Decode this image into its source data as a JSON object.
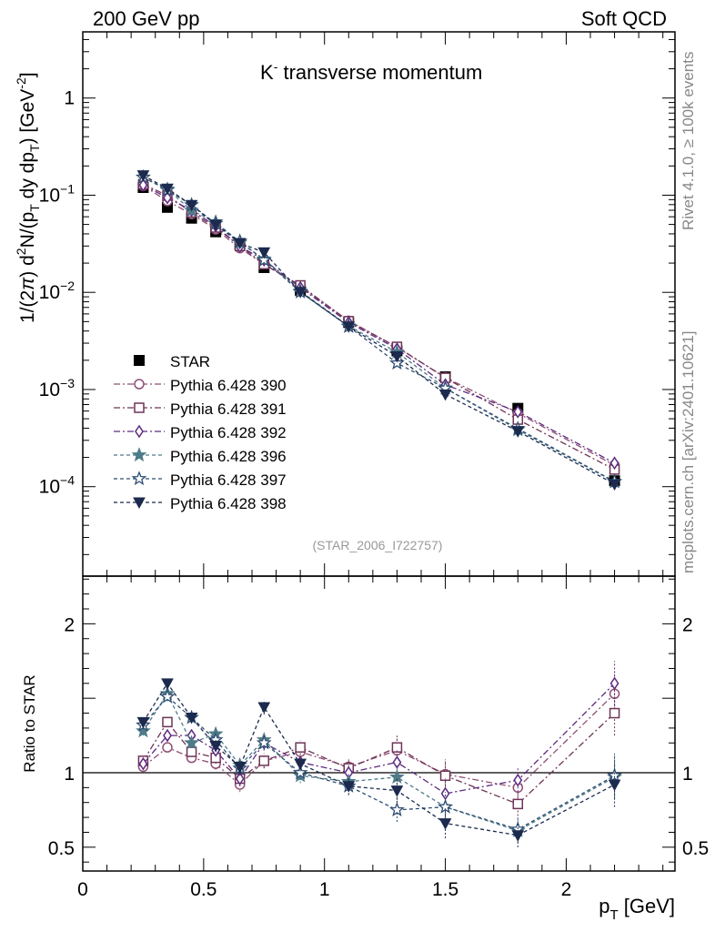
{
  "header": {
    "left": "200 GeV pp",
    "right": "Soft QCD"
  },
  "side_labels": {
    "rivet": "Rivet 4.1.0, ≥ 100k events",
    "mcplots": "mcplots.cern.ch [arXiv:2401.10621]"
  },
  "chart_data": [
    {
      "id": "main",
      "type": "line",
      "scale": "log",
      "title_prefix": "K",
      "title_sup": "-",
      "title_rest": " transverse momentum",
      "ylabel": "1/(2π) d²N/(p_T dy dp_T) [GeV⁻²]",
      "ylabel_parts": {
        "p1": "1/(2",
        "pi": "π",
        "p2": ")   d",
        "sup2": "2",
        "p3": "N/(p",
        "subT": "T",
        "p4": " dy dp",
        "subT2": "T",
        "p5": ") [GeV",
        "supm2": "-2",
        "p6": "]"
      },
      "xlim": [
        0,
        2.45
      ],
      "ylim": [
        1.2e-05,
        4.8
      ],
      "yticks": [
        {
          "v": 1,
          "label": "1"
        },
        {
          "v": 0.1,
          "base": "10",
          "exp": "−1"
        },
        {
          "v": 0.01,
          "base": "10",
          "exp": "−2"
        },
        {
          "v": 0.001,
          "base": "10",
          "exp": "−3"
        },
        {
          "v": 0.0001,
          "base": "10",
          "exp": "−4"
        }
      ],
      "analysis_label": "(STAR_2006_I722757)",
      "x": [
        0.25,
        0.35,
        0.45,
        0.55,
        0.65,
        0.75,
        0.9,
        1.1,
        1.3,
        1.5,
        1.8,
        2.2
      ],
      "data": {
        "name": "STAR",
        "values": [
          0.12,
          0.075,
          0.058,
          0.042,
          0.031,
          0.018,
          0.0105,
          0.0049,
          0.0025,
          0.00135,
          0.00064,
          0.000115
        ]
      },
      "series": [
        {
          "name": "Pythia 6.428 390",
          "color": "#8e4f74",
          "marker": "circle-open",
          "dash": "7 3 2 3",
          "values": [
            0.125,
            0.087,
            0.064,
            0.0445,
            0.0285,
            0.0195,
            0.0115,
            0.0051,
            0.00272,
            0.00133,
            0.00057,
            0.000166
          ]
        },
        {
          "name": "Pythia 6.428 391",
          "color": "#6e3456",
          "marker": "square-open",
          "dash": "7 3 2 3",
          "values": [
            0.13,
            0.099,
            0.0665,
            0.0465,
            0.03,
            0.0195,
            0.0118,
            0.00505,
            0.00275,
            0.00132,
            0.00049,
            0.00015
          ]
        },
        {
          "name": "Pythia 6.428 392",
          "color": "#5e2a80",
          "marker": "diamond-open",
          "dash": "7 3 2 3",
          "values": [
            0.127,
            0.094,
            0.0698,
            0.0482,
            0.0297,
            0.0215,
            0.0112,
            0.0049,
            0.00262,
            0.00112,
            0.00059,
            0.000175
          ]
        },
        {
          "name": "Pythia 6.428 396",
          "color": "#4f7a88",
          "marker": "star-filled",
          "dash": "4 3",
          "values": [
            0.153,
            0.115,
            0.0695,
            0.053,
            0.0325,
            0.022,
            0.0103,
            0.0045,
            0.00242,
            0.00103,
            0.000385,
            0.000112
          ]
        },
        {
          "name": "Pythia 6.428 397",
          "color": "#2f4f72",
          "marker": "star-open",
          "dash": "4 3",
          "values": [
            0.153,
            0.113,
            0.0795,
            0.051,
            0.0335,
            0.0215,
            0.0101,
            0.00445,
            0.00187,
            0.00103,
            0.000395,
            0.000113
          ]
        },
        {
          "name": "Pythia 6.428 398",
          "color": "#1c2a4e",
          "marker": "triangle-down-filled",
          "dash": "4 3",
          "values": [
            0.16,
            0.117,
            0.0792,
            0.0498,
            0.0322,
            0.0258,
            0.0101,
            0.00445,
            0.0022,
            0.00089,
            0.000372,
            0.000106
          ]
        }
      ]
    },
    {
      "id": "ratio",
      "type": "line",
      "ylabel": "Ratio to STAR",
      "xlabel_main": "p",
      "xlabel_sub": "T",
      "xlabel_unit": " [GeV]",
      "xlim": [
        0,
        2.45
      ],
      "ylim": [
        0.34,
        2.32
      ],
      "yticks": [
        {
          "v": 0.5,
          "label": "0.5"
        },
        {
          "v": 1,
          "label": "1"
        },
        {
          "v": 2,
          "label": "2"
        }
      ],
      "xticks": [
        {
          "v": 0,
          "label": "0"
        },
        {
          "v": 0.5,
          "label": "0.5"
        },
        {
          "v": 1,
          "label": "1"
        },
        {
          "v": 1.5,
          "label": "1.5"
        },
        {
          "v": 2,
          "label": "2"
        }
      ],
      "x": [
        0.25,
        0.35,
        0.45,
        0.55,
        0.65,
        0.75,
        0.9,
        1.1,
        1.3,
        1.5,
        1.8,
        2.2
      ],
      "series": [
        {
          "name": "Pythia 6.428 390",
          "values": [
            1.04,
            1.17,
            1.1,
            1.06,
            0.92,
            1.08,
            1.14,
            1.04,
            1.15,
            0.99,
            0.9,
            1.53
          ]
        },
        {
          "name": "Pythia 6.428 391",
          "values": [
            1.08,
            1.34,
            1.14,
            1.1,
            0.96,
            1.08,
            1.17,
            1.03,
            1.17,
            0.98,
            0.79,
            1.4
          ]
        },
        {
          "name": "Pythia 6.428 392",
          "values": [
            1.06,
            1.25,
            1.25,
            1.15,
            0.96,
            1.2,
            1.07,
            1.0,
            1.07,
            0.86,
            0.95,
            1.6
          ]
        },
        {
          "name": "Pythia 6.428 396",
          "values": [
            1.28,
            1.53,
            1.2,
            1.26,
            1.05,
            1.22,
            0.98,
            0.94,
            0.97,
            0.77,
            0.61,
            0.97
          ]
        },
        {
          "name": "Pythia 6.428 397",
          "values": [
            1.32,
            1.51,
            1.37,
            1.22,
            1.03,
            1.2,
            1.0,
            0.91,
            0.75,
            0.77,
            0.62,
            0.98
          ]
        },
        {
          "name": "Pythia 6.428 398",
          "values": [
            1.34,
            1.6,
            1.37,
            1.18,
            1.04,
            1.44,
            1.06,
            0.91,
            0.88,
            0.66,
            0.58,
            0.92
          ]
        }
      ],
      "errors": [
        0.03,
        0.03,
        0.03,
        0.04,
        0.05,
        0.05,
        0.05,
        0.06,
        0.08,
        0.1,
        0.08,
        0.15
      ]
    }
  ]
}
